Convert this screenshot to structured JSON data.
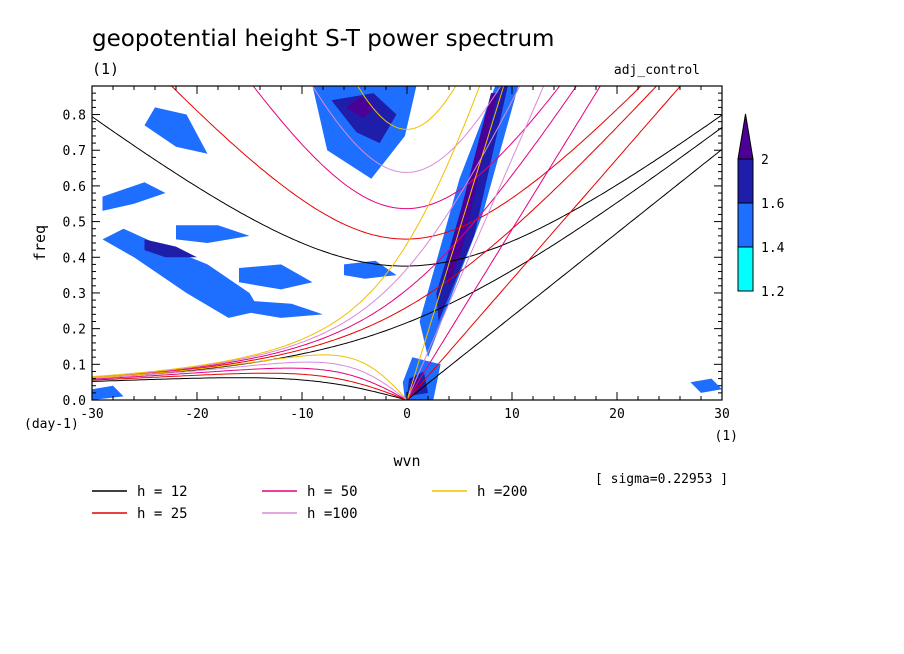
{
  "chart_data": {
    "type": "heatmap",
    "title": "geopotential height S-T power spectrum",
    "subtitle_left": "(1)",
    "subtitle_right": "adj_control",
    "xlabel": "wvn",
    "ylabel": "freq",
    "x_unit": "(1)",
    "y_unit": "(day-1)",
    "annotation": "[ sigma=0.22953 ]",
    "xlim": [
      -30,
      30
    ],
    "ylim": [
      0,
      0.88
    ],
    "xticks": [
      -30,
      -20,
      -10,
      0,
      10,
      20,
      30
    ],
    "yticks": [
      0.0,
      0.1,
      0.2,
      0.3,
      0.4,
      0.5,
      0.6,
      0.7,
      0.8
    ],
    "colorbar": {
      "levels": [
        1.2,
        1.4,
        1.6,
        2
      ],
      "colors": [
        "#00ffff",
        "#1e6eff",
        "#1e1eaa",
        "#4b0096"
      ],
      "labels": [
        "1.2",
        "1.4",
        "1.6",
        "2"
      ]
    },
    "dispersion_curves": [
      {
        "label": "h = 12",
        "h": 12,
        "color": "#000000"
      },
      {
        "label": "h = 25",
        "h": 25,
        "color": "#e60000"
      },
      {
        "label": "h = 50",
        "h": 50,
        "color": "#e6007f"
      },
      {
        "label": "h =100",
        "h": 100,
        "color": "#d98ad9"
      },
      {
        "label": "h =200",
        "h": 200,
        "color": "#f0c000"
      }
    ],
    "power_regions": [
      {
        "level": 1.4,
        "points": [
          [
            -0.2,
            0.0
          ],
          [
            2.5,
            0.0
          ],
          [
            3.2,
            0.1
          ],
          [
            0.5,
            0.12
          ],
          [
            -0.4,
            0.05
          ]
        ]
      },
      {
        "level": 1.4,
        "points": [
          [
            2.0,
            0.12
          ],
          [
            7.2,
            0.52
          ],
          [
            10.6,
            0.88
          ],
          [
            8.4,
            0.88
          ],
          [
            5.0,
            0.62
          ],
          [
            1.2,
            0.22
          ]
        ]
      },
      {
        "level": 1.4,
        "points": [
          [
            -9.0,
            0.88
          ],
          [
            -7.6,
            0.7
          ],
          [
            -3.4,
            0.62
          ],
          [
            -0.2,
            0.74
          ],
          [
            0.9,
            0.88
          ]
        ]
      },
      {
        "level": 1.4,
        "points": [
          [
            -27,
            0.48
          ],
          [
            -24,
            0.44
          ],
          [
            -19,
            0.38
          ],
          [
            -15,
            0.3
          ],
          [
            -14,
            0.25
          ],
          [
            -17,
            0.23
          ],
          [
            -21,
            0.3
          ],
          [
            -26,
            0.4
          ],
          [
            -29,
            0.45
          ]
        ]
      },
      {
        "level": 1.4,
        "points": [
          [
            -24,
            0.82
          ],
          [
            -21,
            0.8
          ],
          [
            -19,
            0.69
          ],
          [
            -22,
            0.71
          ],
          [
            -25,
            0.77
          ]
        ]
      },
      {
        "level": 1.4,
        "points": [
          [
            -29,
            0.57
          ],
          [
            -25,
            0.61
          ],
          [
            -23,
            0.58
          ],
          [
            -26,
            0.55
          ],
          [
            -29,
            0.53
          ]
        ]
      },
      {
        "level": 1.4,
        "points": [
          [
            -22,
            0.49
          ],
          [
            -18,
            0.49
          ],
          [
            -15,
            0.46
          ],
          [
            -19,
            0.44
          ],
          [
            -22,
            0.45
          ]
        ]
      },
      {
        "level": 1.4,
        "points": [
          [
            -16,
            0.37
          ],
          [
            -12,
            0.38
          ],
          [
            -9,
            0.33
          ],
          [
            -12,
            0.31
          ],
          [
            -16,
            0.33
          ]
        ]
      },
      {
        "level": 1.4,
        "points": [
          [
            -6,
            0.38
          ],
          [
            -3,
            0.39
          ],
          [
            -1,
            0.35
          ],
          [
            -4,
            0.34
          ],
          [
            -6,
            0.35
          ]
        ]
      },
      {
        "level": 1.4,
        "points": [
          [
            -16,
            0.28
          ],
          [
            -11,
            0.27
          ],
          [
            -8,
            0.24
          ],
          [
            -12,
            0.23
          ],
          [
            -16,
            0.25
          ]
        ]
      },
      {
        "level": 1.4,
        "points": [
          [
            -30,
            0.03
          ],
          [
            -28,
            0.04
          ],
          [
            -27,
            0.01
          ],
          [
            -30,
            0.0
          ]
        ]
      },
      {
        "level": 1.4,
        "points": [
          [
            27,
            0.05
          ],
          [
            29,
            0.06
          ],
          [
            30,
            0.03
          ],
          [
            28,
            0.02
          ]
        ]
      },
      {
        "level": 1.6,
        "points": [
          [
            0.0,
            0.01
          ],
          [
            2.0,
            0.02
          ],
          [
            1.6,
            0.08
          ],
          [
            0.2,
            0.06
          ]
        ]
      },
      {
        "level": 1.6,
        "points": [
          [
            3.0,
            0.22
          ],
          [
            6.4,
            0.46
          ],
          [
            9.6,
            0.88
          ],
          [
            8.8,
            0.88
          ],
          [
            6.0,
            0.62
          ],
          [
            2.8,
            0.3
          ]
        ]
      },
      {
        "level": 1.6,
        "points": [
          [
            -7.2,
            0.84
          ],
          [
            -4.8,
            0.75
          ],
          [
            -2.6,
            0.72
          ],
          [
            -1.0,
            0.8
          ],
          [
            -3.2,
            0.86
          ]
        ]
      },
      {
        "level": 1.6,
        "points": [
          [
            -25,
            0.45
          ],
          [
            -22,
            0.43
          ],
          [
            -20,
            0.4
          ],
          [
            -23,
            0.4
          ],
          [
            -25,
            0.42
          ]
        ]
      },
      {
        "level": 2.0,
        "points": [
          [
            0.3,
            0.02
          ],
          [
            1.5,
            0.03
          ],
          [
            1.2,
            0.06
          ],
          [
            0.4,
            0.05
          ]
        ]
      },
      {
        "level": 2.0,
        "points": [
          [
            4.0,
            0.32
          ],
          [
            5.4,
            0.44
          ],
          [
            8.6,
            0.86
          ],
          [
            8.0,
            0.86
          ],
          [
            5.2,
            0.54
          ],
          [
            3.6,
            0.36
          ]
        ]
      },
      {
        "level": 2.0,
        "points": [
          [
            -5.8,
            0.82
          ],
          [
            -4.2,
            0.79
          ],
          [
            -3.0,
            0.82
          ],
          [
            -4.4,
            0.85
          ]
        ]
      }
    ]
  }
}
